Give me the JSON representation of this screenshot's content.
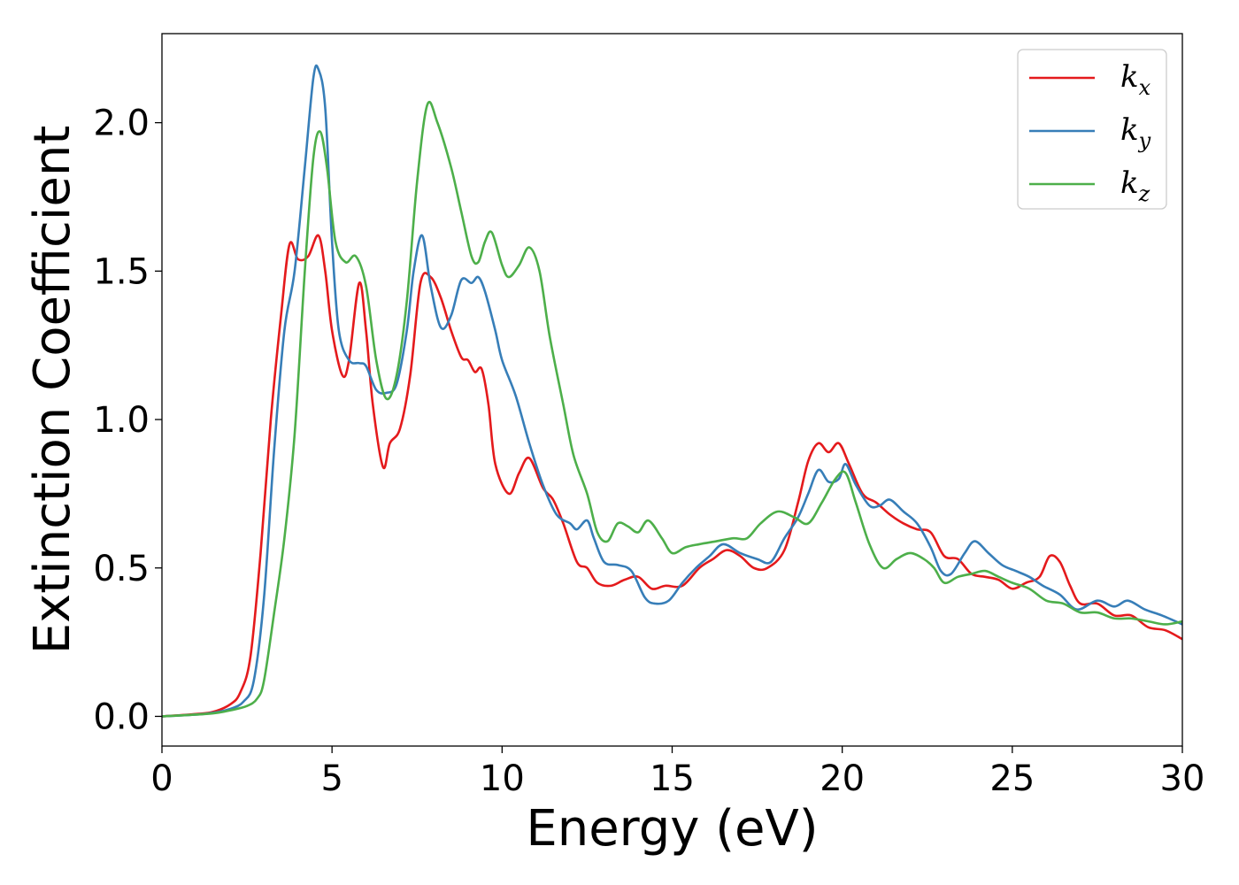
{
  "chart_data": {
    "type": "line",
    "xlabel": "Energy (eV)",
    "ylabel": "Extinction Coefficient",
    "xlim": [
      0,
      30
    ],
    "ylim": [
      -0.1,
      2.3
    ],
    "x_ticks": [
      "0",
      "5",
      "10",
      "15",
      "20",
      "25",
      "30"
    ],
    "y_ticks": [
      "0.0",
      "0.5",
      "1.0",
      "1.5",
      "2.0"
    ],
    "grid": false,
    "legend_position": "top-right",
    "series": [
      {
        "name": "k",
        "subscript": "x",
        "color": "#e41a1c",
        "points": [
          [
            0,
            0
          ],
          [
            1,
            0.008
          ],
          [
            1.5,
            0.015
          ],
          [
            2,
            0.04
          ],
          [
            2.3,
            0.08
          ],
          [
            2.6,
            0.2
          ],
          [
            2.9,
            0.55
          ],
          [
            3.2,
            1.0
          ],
          [
            3.5,
            1.35
          ],
          [
            3.75,
            1.59
          ],
          [
            4.0,
            1.54
          ],
          [
            4.3,
            1.55
          ],
          [
            4.6,
            1.62
          ],
          [
            4.8,
            1.5
          ],
          [
            5.0,
            1.3
          ],
          [
            5.3,
            1.15
          ],
          [
            5.5,
            1.2
          ],
          [
            5.8,
            1.46
          ],
          [
            6.0,
            1.3
          ],
          [
            6.2,
            1.05
          ],
          [
            6.5,
            0.84
          ],
          [
            6.7,
            0.92
          ],
          [
            7.0,
            0.97
          ],
          [
            7.3,
            1.15
          ],
          [
            7.6,
            1.46
          ],
          [
            7.9,
            1.48
          ],
          [
            8.2,
            1.41
          ],
          [
            8.5,
            1.3
          ],
          [
            8.8,
            1.21
          ],
          [
            9.0,
            1.2
          ],
          [
            9.2,
            1.16
          ],
          [
            9.4,
            1.17
          ],
          [
            9.6,
            1.05
          ],
          [
            9.8,
            0.85
          ],
          [
            10.2,
            0.75
          ],
          [
            10.5,
            0.82
          ],
          [
            10.8,
            0.87
          ],
          [
            11.2,
            0.77
          ],
          [
            11.5,
            0.73
          ],
          [
            11.8,
            0.65
          ],
          [
            12.2,
            0.52
          ],
          [
            12.5,
            0.5
          ],
          [
            12.8,
            0.45
          ],
          [
            13.2,
            0.44
          ],
          [
            13.6,
            0.46
          ],
          [
            14.0,
            0.47
          ],
          [
            14.4,
            0.43
          ],
          [
            14.8,
            0.44
          ],
          [
            15.3,
            0.44
          ],
          [
            15.8,
            0.5
          ],
          [
            16.2,
            0.53
          ],
          [
            16.6,
            0.56
          ],
          [
            17.0,
            0.54
          ],
          [
            17.4,
            0.5
          ],
          [
            17.8,
            0.5
          ],
          [
            18.3,
            0.56
          ],
          [
            18.7,
            0.72
          ],
          [
            19.0,
            0.86
          ],
          [
            19.3,
            0.92
          ],
          [
            19.6,
            0.89
          ],
          [
            19.9,
            0.92
          ],
          [
            20.2,
            0.85
          ],
          [
            20.6,
            0.75
          ],
          [
            21.0,
            0.72
          ],
          [
            21.4,
            0.68
          ],
          [
            21.8,
            0.65
          ],
          [
            22.2,
            0.63
          ],
          [
            22.6,
            0.62
          ],
          [
            23.0,
            0.54
          ],
          [
            23.4,
            0.53
          ],
          [
            23.8,
            0.48
          ],
          [
            24.2,
            0.47
          ],
          [
            24.6,
            0.46
          ],
          [
            25.0,
            0.43
          ],
          [
            25.4,
            0.45
          ],
          [
            25.8,
            0.47
          ],
          [
            26.1,
            0.54
          ],
          [
            26.4,
            0.52
          ],
          [
            26.7,
            0.44
          ],
          [
            27.0,
            0.38
          ],
          [
            27.5,
            0.38
          ],
          [
            28.0,
            0.34
          ],
          [
            28.5,
            0.34
          ],
          [
            29.0,
            0.3
          ],
          [
            29.5,
            0.29
          ],
          [
            30,
            0.26
          ]
        ]
      },
      {
        "name": "k",
        "subscript": "y",
        "color": "#377eb8",
        "points": [
          [
            0,
            0
          ],
          [
            1,
            0.006
          ],
          [
            1.5,
            0.012
          ],
          [
            2,
            0.025
          ],
          [
            2.4,
            0.05
          ],
          [
            2.7,
            0.12
          ],
          [
            3.0,
            0.4
          ],
          [
            3.3,
            0.9
          ],
          [
            3.6,
            1.3
          ],
          [
            3.9,
            1.5
          ],
          [
            4.2,
            1.85
          ],
          [
            4.45,
            2.15
          ],
          [
            4.6,
            2.18
          ],
          [
            4.8,
            2.05
          ],
          [
            5.0,
            1.6
          ],
          [
            5.2,
            1.3
          ],
          [
            5.5,
            1.2
          ],
          [
            5.8,
            1.19
          ],
          [
            6.0,
            1.18
          ],
          [
            6.3,
            1.1
          ],
          [
            6.6,
            1.09
          ],
          [
            6.9,
            1.12
          ],
          [
            7.2,
            1.3
          ],
          [
            7.4,
            1.5
          ],
          [
            7.65,
            1.62
          ],
          [
            7.9,
            1.45
          ],
          [
            8.2,
            1.31
          ],
          [
            8.5,
            1.35
          ],
          [
            8.8,
            1.47
          ],
          [
            9.1,
            1.46
          ],
          [
            9.3,
            1.48
          ],
          [
            9.5,
            1.43
          ],
          [
            9.8,
            1.3
          ],
          [
            10.0,
            1.2
          ],
          [
            10.4,
            1.08
          ],
          [
            10.8,
            0.92
          ],
          [
            11.2,
            0.78
          ],
          [
            11.6,
            0.68
          ],
          [
            12.0,
            0.65
          ],
          [
            12.2,
            0.63
          ],
          [
            12.5,
            0.66
          ],
          [
            12.7,
            0.6
          ],
          [
            13.0,
            0.52
          ],
          [
            13.4,
            0.51
          ],
          [
            13.8,
            0.49
          ],
          [
            14.2,
            0.4
          ],
          [
            14.5,
            0.38
          ],
          [
            14.9,
            0.39
          ],
          [
            15.3,
            0.45
          ],
          [
            15.7,
            0.5
          ],
          [
            16.1,
            0.54
          ],
          [
            16.5,
            0.58
          ],
          [
            17.0,
            0.55
          ],
          [
            17.5,
            0.53
          ],
          [
            17.9,
            0.52
          ],
          [
            18.3,
            0.6
          ],
          [
            18.7,
            0.67
          ],
          [
            19.0,
            0.75
          ],
          [
            19.3,
            0.83
          ],
          [
            19.6,
            0.79
          ],
          [
            19.9,
            0.8
          ],
          [
            20.1,
            0.85
          ],
          [
            20.4,
            0.78
          ],
          [
            20.8,
            0.71
          ],
          [
            21.1,
            0.71
          ],
          [
            21.4,
            0.73
          ],
          [
            21.8,
            0.69
          ],
          [
            22.2,
            0.65
          ],
          [
            22.6,
            0.57
          ],
          [
            22.9,
            0.49
          ],
          [
            23.2,
            0.48
          ],
          [
            23.6,
            0.55
          ],
          [
            23.9,
            0.59
          ],
          [
            24.3,
            0.55
          ],
          [
            24.7,
            0.51
          ],
          [
            25.1,
            0.49
          ],
          [
            25.5,
            0.47
          ],
          [
            25.9,
            0.44
          ],
          [
            26.4,
            0.41
          ],
          [
            26.9,
            0.36
          ],
          [
            27.5,
            0.39
          ],
          [
            28.0,
            0.37
          ],
          [
            28.4,
            0.39
          ],
          [
            28.9,
            0.36
          ],
          [
            29.4,
            0.34
          ],
          [
            30,
            0.31
          ]
        ]
      },
      {
        "name": "k",
        "subscript": "z",
        "color": "#4daf4a",
        "points": [
          [
            0,
            0
          ],
          [
            1,
            0.006
          ],
          [
            1.5,
            0.01
          ],
          [
            2,
            0.02
          ],
          [
            2.5,
            0.035
          ],
          [
            2.8,
            0.06
          ],
          [
            3.0,
            0.12
          ],
          [
            3.3,
            0.35
          ],
          [
            3.6,
            0.6
          ],
          [
            3.9,
            0.95
          ],
          [
            4.2,
            1.5
          ],
          [
            4.45,
            1.88
          ],
          [
            4.65,
            1.97
          ],
          [
            4.85,
            1.85
          ],
          [
            5.1,
            1.6
          ],
          [
            5.4,
            1.53
          ],
          [
            5.7,
            1.55
          ],
          [
            6.0,
            1.45
          ],
          [
            6.3,
            1.2
          ],
          [
            6.6,
            1.07
          ],
          [
            6.9,
            1.15
          ],
          [
            7.2,
            1.4
          ],
          [
            7.5,
            1.8
          ],
          [
            7.8,
            2.06
          ],
          [
            8.1,
            2.0
          ],
          [
            8.5,
            1.85
          ],
          [
            8.8,
            1.7
          ],
          [
            9.1,
            1.55
          ],
          [
            9.3,
            1.53
          ],
          [
            9.5,
            1.6
          ],
          [
            9.7,
            1.63
          ],
          [
            10.0,
            1.52
          ],
          [
            10.2,
            1.48
          ],
          [
            10.5,
            1.52
          ],
          [
            10.8,
            1.58
          ],
          [
            11.1,
            1.5
          ],
          [
            11.4,
            1.28
          ],
          [
            11.8,
            1.05
          ],
          [
            12.1,
            0.88
          ],
          [
            12.5,
            0.75
          ],
          [
            12.8,
            0.62
          ],
          [
            13.1,
            0.59
          ],
          [
            13.4,
            0.65
          ],
          [
            13.7,
            0.64
          ],
          [
            14.0,
            0.62
          ],
          [
            14.3,
            0.66
          ],
          [
            14.7,
            0.6
          ],
          [
            15.0,
            0.55
          ],
          [
            15.4,
            0.57
          ],
          [
            15.8,
            0.58
          ],
          [
            16.3,
            0.59
          ],
          [
            16.8,
            0.6
          ],
          [
            17.2,
            0.6
          ],
          [
            17.6,
            0.65
          ],
          [
            18.1,
            0.69
          ],
          [
            18.6,
            0.67
          ],
          [
            19.0,
            0.65
          ],
          [
            19.4,
            0.72
          ],
          [
            19.8,
            0.8
          ],
          [
            20.1,
            0.82
          ],
          [
            20.4,
            0.72
          ],
          [
            20.8,
            0.58
          ],
          [
            21.2,
            0.5
          ],
          [
            21.6,
            0.53
          ],
          [
            22.0,
            0.55
          ],
          [
            22.4,
            0.53
          ],
          [
            22.7,
            0.5
          ],
          [
            23.0,
            0.45
          ],
          [
            23.4,
            0.47
          ],
          [
            23.8,
            0.48
          ],
          [
            24.2,
            0.49
          ],
          [
            24.6,
            0.47
          ],
          [
            25.0,
            0.45
          ],
          [
            25.5,
            0.43
          ],
          [
            26.0,
            0.39
          ],
          [
            26.5,
            0.38
          ],
          [
            27.0,
            0.35
          ],
          [
            27.5,
            0.35
          ],
          [
            28.0,
            0.33
          ],
          [
            28.5,
            0.33
          ],
          [
            29.0,
            0.32
          ],
          [
            29.5,
            0.31
          ],
          [
            30,
            0.32
          ]
        ]
      }
    ]
  }
}
